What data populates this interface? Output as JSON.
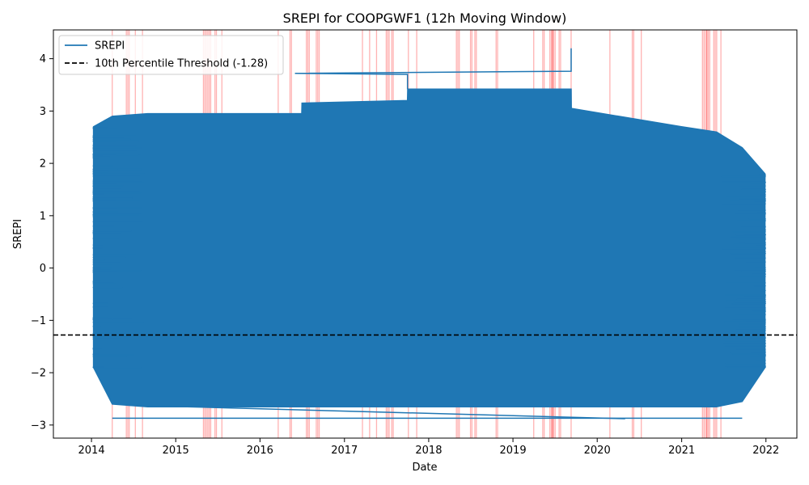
{
  "chart_data": {
    "type": "line",
    "title": "SREPI for COOPGWF1 (12h Moving Window)",
    "xlabel": "Date",
    "ylabel": "SREPI",
    "xlim": [
      "2013-07-20",
      "2022-05-15"
    ],
    "ylim": [
      -3.25,
      4.55
    ],
    "x_ticks": [
      "2014",
      "2015",
      "2016",
      "2017",
      "2018",
      "2019",
      "2020",
      "2021",
      "2022"
    ],
    "y_ticks": [
      -3,
      -2,
      -1,
      0,
      1,
      2,
      3,
      4
    ],
    "grid": false,
    "legend_position": "upper-left",
    "series": [
      {
        "name": "SREPI",
        "color": "#1f77b4",
        "data_start": "2014-01-10",
        "data_end": "2021-12-28",
        "band": [
          {
            "x": "2014-01-10",
            "low": -1.9,
            "high": 2.7
          },
          {
            "x": "2014-04-01",
            "low": -2.6,
            "high": 2.9
          },
          {
            "x": "2014-09-01",
            "low": -2.65,
            "high": 2.95
          },
          {
            "x": "2016-06-30",
            "low": -2.65,
            "high": 2.95
          },
          {
            "x": "2016-07-01",
            "low": -2.65,
            "high": 3.15
          },
          {
            "x": "2017-10-01",
            "low": -2.65,
            "high": 3.2
          },
          {
            "x": "2017-10-02",
            "low": -2.65,
            "high": 3.42
          },
          {
            "x": "2019-09-10",
            "low": -2.65,
            "high": 3.42
          },
          {
            "x": "2019-09-11",
            "low": -2.65,
            "high": 3.05
          },
          {
            "x": "2020-12-31",
            "low": -2.65,
            "high": 2.7
          },
          {
            "x": "2021-06-01",
            "low": -2.65,
            "high": 2.6
          },
          {
            "x": "2021-09-20",
            "low": -2.55,
            "high": 2.3
          },
          {
            "x": "2021-12-28",
            "low": -1.9,
            "high": 1.8
          }
        ],
        "connecting_lines": [
          {
            "x": [
              "2016-06-01",
              "2017-10-01",
              "2017-10-01"
            ],
            "y": [
              3.72,
              3.7,
              3.42
            ]
          },
          {
            "x": [
              "2016-06-01",
              "2019-09-10",
              "2019-09-10"
            ],
            "y": [
              3.72,
              3.76,
              4.2
            ]
          },
          {
            "x": [
              "2014-04-01",
              "2021-09-20"
            ],
            "y": [
              -2.87,
              -2.87
            ]
          },
          {
            "x": [
              "2014-06-01",
              "2020-05-01"
            ],
            "y": [
              -2.62,
              -2.88
            ]
          }
        ]
      },
      {
        "name": "10th Percentile Threshold (-1.28)",
        "type": "hline",
        "y": -1.28,
        "color": "#000000",
        "style": "dashed"
      }
    ],
    "drought_events": [
      {
        "x": "2014-04-01",
        "count": 1
      },
      {
        "x": "2014-06-01",
        "count": 3
      },
      {
        "x": "2014-07-10",
        "count": 1
      },
      {
        "x": "2014-08-10",
        "count": 1
      },
      {
        "x": "2015-05-01",
        "count": 3
      },
      {
        "x": "2015-05-20",
        "count": 3
      },
      {
        "x": "2015-06-20",
        "count": 2
      },
      {
        "x": "2015-07-20",
        "count": 1
      },
      {
        "x": "2016-03-20",
        "count": 1
      },
      {
        "x": "2016-05-10",
        "count": 2
      },
      {
        "x": "2016-07-20",
        "count": 3
      },
      {
        "x": "2016-09-01",
        "count": 3
      },
      {
        "x": "2017-03-20",
        "count": 1
      },
      {
        "x": "2017-04-20",
        "count": 1
      },
      {
        "x": "2017-05-20",
        "count": 1
      },
      {
        "x": "2017-07-01",
        "count": 3
      },
      {
        "x": "2017-07-25",
        "count": 2
      },
      {
        "x": "2017-10-05",
        "count": 1
      },
      {
        "x": "2017-11-10",
        "count": 1
      },
      {
        "x": "2018-05-01",
        "count": 3
      },
      {
        "x": "2018-07-01",
        "count": 2
      },
      {
        "x": "2018-07-20",
        "count": 2
      },
      {
        "x": "2018-10-20",
        "count": 2
      },
      {
        "x": "2019-04-01",
        "count": 1
      },
      {
        "x": "2019-05-10",
        "count": 2
      },
      {
        "x": "2019-06-10",
        "count": 3
      },
      {
        "x": "2019-06-20",
        "count": 3
      },
      {
        "x": "2019-07-20",
        "count": 2
      },
      {
        "x": "2019-09-10",
        "count": 1
      },
      {
        "x": "2020-02-25",
        "count": 1
      },
      {
        "x": "2020-06-01",
        "count": 2
      },
      {
        "x": "2020-07-10",
        "count": 1
      },
      {
        "x": "2021-04-01",
        "count": 4
      },
      {
        "x": "2021-04-20",
        "count": 3
      },
      {
        "x": "2021-05-20",
        "count": 3
      },
      {
        "x": "2021-06-20",
        "count": 1
      }
    ],
    "event_color": "#ff0000",
    "legend": {
      "entries": [
        {
          "label": "SREPI",
          "color": "#1f77b4",
          "style": "solid"
        },
        {
          "label": "10th Percentile Threshold (-1.28)",
          "color": "#000000",
          "style": "dashed"
        }
      ]
    }
  }
}
